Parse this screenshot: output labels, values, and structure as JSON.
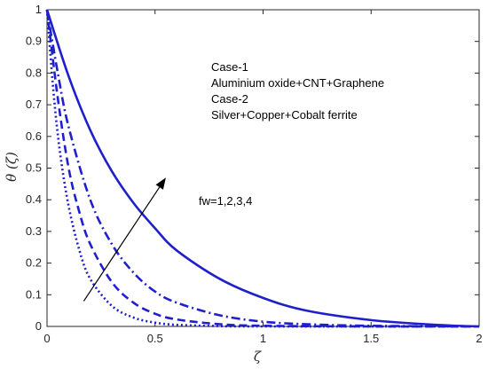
{
  "chart_data": {
    "type": "line",
    "xlabel": "ζ",
    "ylabel": "θ (ζ)",
    "xlim": [
      0,
      2
    ],
    "ylim": [
      0,
      1
    ],
    "x_ticks": [
      "0",
      "0.5",
      "1",
      "1.5",
      "2"
    ],
    "y_ticks": [
      "0",
      "0.1",
      "0.2",
      "0.3",
      "0.4",
      "0.5",
      "0.6",
      "0.7",
      "0.8",
      "0.9",
      "1"
    ],
    "grid": false,
    "series_color": "#1f1fcc",
    "series": [
      {
        "line_style": "solid",
        "x": [
          0,
          0.1,
          0.2,
          0.3,
          0.4,
          0.5,
          0.6,
          0.8,
          1.0,
          1.2,
          1.5,
          1.8,
          2.0
        ],
        "y": [
          1.0,
          0.79,
          0.62,
          0.49,
          0.39,
          0.31,
          0.24,
          0.15,
          0.09,
          0.05,
          0.02,
          0.005,
          0.0
        ]
      },
      {
        "line_style": "dashdot",
        "x": [
          0,
          0.05,
          0.1,
          0.2,
          0.3,
          0.4,
          0.5,
          0.6,
          0.8,
          1.0,
          1.2,
          1.5,
          2.0
        ],
        "y": [
          1.0,
          0.8,
          0.63,
          0.4,
          0.26,
          0.17,
          0.11,
          0.075,
          0.035,
          0.015,
          0.007,
          0.002,
          0.0
        ]
      },
      {
        "line_style": "dashed",
        "x": [
          0,
          0.05,
          0.1,
          0.15,
          0.2,
          0.3,
          0.4,
          0.5,
          0.6,
          0.8,
          1.0,
          1.5,
          2.0
        ],
        "y": [
          1.0,
          0.72,
          0.5,
          0.36,
          0.26,
          0.14,
          0.075,
          0.04,
          0.022,
          0.007,
          0.002,
          0.0,
          0.0
        ]
      },
      {
        "line_style": "dotted",
        "x": [
          0,
          0.03,
          0.06,
          0.1,
          0.15,
          0.2,
          0.3,
          0.4,
          0.5,
          0.6,
          0.8,
          1.0,
          2.0
        ],
        "y": [
          1.0,
          0.74,
          0.55,
          0.38,
          0.24,
          0.15,
          0.065,
          0.028,
          0.012,
          0.005,
          0.001,
          0.0,
          0.0
        ]
      }
    ],
    "annotations": {
      "case_lines": [
        "Case-1",
        "Aluminium oxide+CNT+Graphene",
        "Case-2",
        "Silver+Copper+Cobalt ferrite"
      ],
      "arrow_label": "fw=1,2,3,4",
      "arrow": {
        "from": [
          0.17,
          0.08
        ],
        "to": [
          0.55,
          0.47
        ]
      }
    }
  }
}
